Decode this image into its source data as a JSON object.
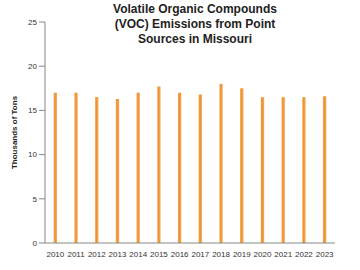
{
  "chart_data": {
    "type": "bar",
    "title": "Volatile Organic Compounds (VOC) Emissions from Point Sources in Missouri",
    "y_label": "Thousands of Tons",
    "categories": [
      "2010",
      "2011",
      "2012",
      "2013",
      "2014",
      "2015",
      "2016",
      "2017",
      "2018",
      "2019",
      "2020",
      "2021",
      "2022",
      "2023"
    ],
    "values": [
      17.0,
      17.0,
      16.5,
      16.3,
      17.0,
      17.7,
      17.0,
      16.8,
      18.0,
      17.5,
      16.5,
      16.5,
      16.5,
      16.6
    ],
    "color": "#f0922e",
    "ylim": [
      0,
      25
    ],
    "yticks": [
      0,
      5,
      10,
      15,
      20,
      25
    ],
    "grid": false
  }
}
